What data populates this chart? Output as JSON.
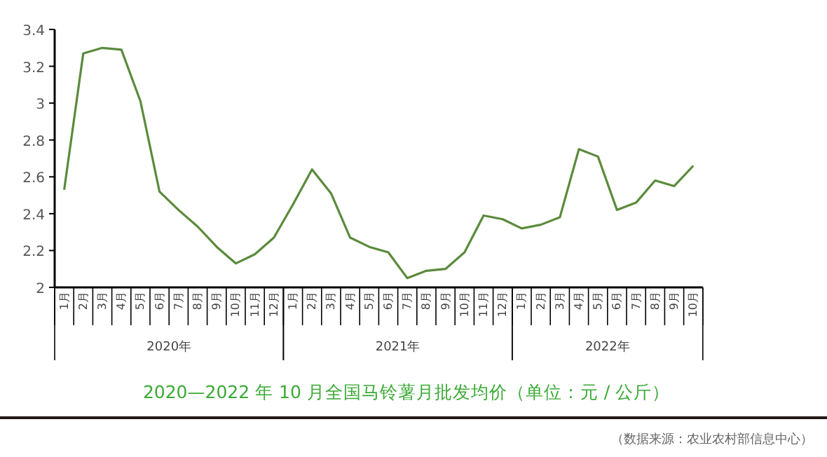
{
  "chart_data": {
    "type": "line",
    "title": "2020—2022 年 10 月全国马铃薯月批发均价（单位：元 / 公斤）",
    "categories": [
      "1月",
      "2月",
      "3月",
      "4月",
      "5月",
      "6月",
      "7月",
      "8月",
      "9月",
      "10月",
      "11月",
      "12月",
      "1月",
      "2月",
      "3月",
      "4月",
      "5月",
      "6月",
      "7月",
      "8月",
      "9月",
      "10月",
      "11月",
      "12月",
      "1月",
      "2月",
      "3月",
      "4月",
      "5月",
      "6月",
      "7月",
      "8月",
      "9月",
      "10月"
    ],
    "series": [
      {
        "color": "#5b8a3c",
        "values": [
          2.53,
          3.27,
          3.3,
          3.29,
          3.01,
          2.52,
          2.42,
          2.33,
          2.22,
          2.13,
          2.18,
          2.27,
          2.45,
          2.64,
          2.51,
          2.27,
          2.22,
          2.19,
          2.05,
          2.09,
          2.1,
          2.19,
          2.39,
          2.37,
          2.32,
          2.34,
          2.38,
          2.75,
          2.71,
          2.42,
          2.46,
          2.58,
          2.55,
          2.66
        ]
      }
    ],
    "ylim": [
      2,
      3.4
    ],
    "yticks": [
      2,
      2.2,
      2.4,
      2.6,
      2.8,
      3,
      3.2,
      3.4
    ],
    "marker": "none",
    "line_style": "solid",
    "annotations": [
      "2020年",
      "2021年",
      "2022年",
      "（数据来源：农业农村部信息中心）"
    ]
  }
}
